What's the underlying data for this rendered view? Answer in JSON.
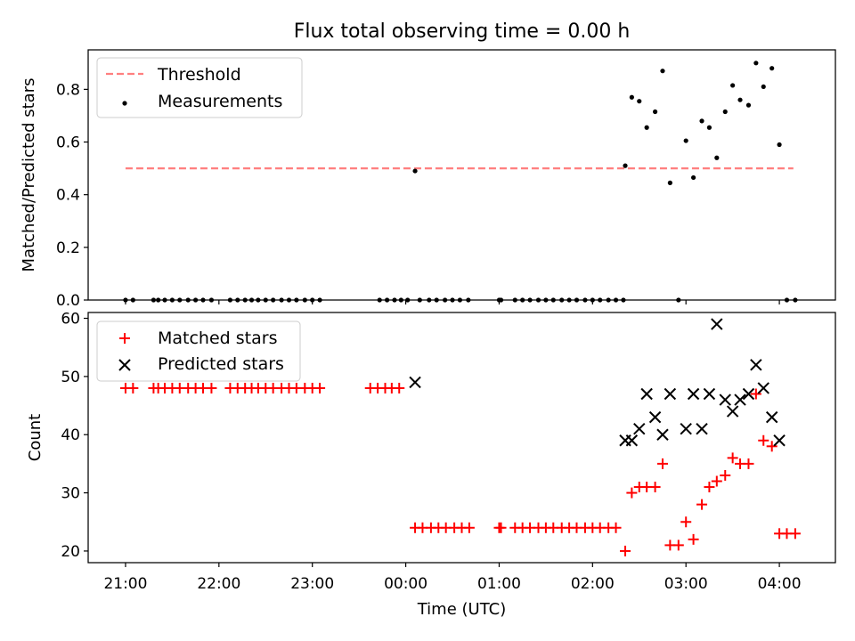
{
  "chart_data": [
    {
      "type": "scatter",
      "title": "Flux total observing time = 0.00 h",
      "xlabel": "",
      "ylabel": "Matched/Predicted stars",
      "ylim": [
        0,
        0.95
      ],
      "yticks": [
        "0.0",
        "0.2",
        "0.4",
        "0.6",
        "0.8"
      ],
      "xrange_hours": [
        20.6,
        28.6
      ],
      "legend_position": "top-left",
      "grid": false,
      "threshold": {
        "name": "Threshold",
        "value": 0.5,
        "x_start": 21.0,
        "x_end": 28.15,
        "color": "#ff7f7f",
        "style": "dashed"
      },
      "series": [
        {
          "name": "Measurements",
          "color": "#000000",
          "marker": "dot",
          "x": [
            21.0,
            21.08,
            21.3,
            21.35,
            21.42,
            21.5,
            21.58,
            21.67,
            21.75,
            21.83,
            21.92,
            22.12,
            22.2,
            22.28,
            22.35,
            22.42,
            22.5,
            22.58,
            22.67,
            22.75,
            22.83,
            22.92,
            23.0,
            23.08,
            23.72,
            23.8,
            23.88,
            23.95,
            24.02,
            24.1,
            24.15,
            24.25,
            24.33,
            24.42,
            24.5,
            24.58,
            24.67,
            25.0,
            25.02,
            25.17,
            25.25,
            25.33,
            25.42,
            25.5,
            25.58,
            25.67,
            25.75,
            25.83,
            25.92,
            26.0,
            26.08,
            26.17,
            26.25,
            26.33,
            26.35,
            26.42,
            26.5,
            26.58,
            26.67,
            26.75,
            26.83,
            26.92,
            27.0,
            27.08,
            27.17,
            27.25,
            27.33,
            27.42,
            27.5,
            27.58,
            27.67,
            27.75,
            27.83,
            27.92,
            28.0,
            28.08,
            28.17
          ],
          "y": [
            0,
            0,
            0,
            0,
            0,
            0,
            0,
            0,
            0,
            0,
            0,
            0,
            0,
            0,
            0,
            0,
            0,
            0,
            0,
            0,
            0,
            0,
            0,
            0,
            0,
            0,
            0,
            0,
            0,
            0.49,
            0,
            0,
            0,
            0,
            0,
            0,
            0,
            0,
            0,
            0,
            0,
            0,
            0,
            0,
            0,
            0,
            0,
            0,
            0,
            0,
            0,
            0,
            0,
            0,
            0.51,
            0.77,
            0.755,
            0.655,
            0.715,
            0.87,
            0.445,
            0.0,
            0.605,
            0.465,
            0.68,
            0.655,
            0.54,
            0.715,
            0.815,
            0.76,
            0.74,
            0.9,
            0.81,
            0.88,
            0.59,
            0,
            0
          ]
        }
      ]
    },
    {
      "type": "scatter",
      "title": "",
      "xlabel": "Time (UTC)",
      "ylabel": "Count",
      "ylim": [
        18,
        61
      ],
      "yticks": [
        "20",
        "30",
        "40",
        "50",
        "60"
      ],
      "xticks": [
        "21:00",
        "22:00",
        "23:00",
        "00:00",
        "01:00",
        "02:00",
        "03:00",
        "04:00"
      ],
      "xtick_hours": [
        21,
        22,
        23,
        24,
        25,
        26,
        27,
        28
      ],
      "xrange_hours": [
        20.6,
        28.6
      ],
      "legend_position": "top-left",
      "grid": false,
      "series": [
        {
          "name": "Matched stars",
          "color": "#ff0000",
          "marker": "plus",
          "x": [
            21.0,
            21.08,
            21.3,
            21.35,
            21.42,
            21.5,
            21.58,
            21.67,
            21.75,
            21.83,
            21.92,
            22.12,
            22.2,
            22.28,
            22.35,
            22.42,
            22.5,
            22.58,
            22.67,
            22.75,
            22.83,
            22.92,
            23.0,
            23.08,
            23.62,
            23.7,
            23.78,
            23.85,
            23.93,
            24.1,
            24.18,
            24.27,
            24.35,
            24.43,
            24.52,
            24.6,
            24.68,
            25.0,
            25.02,
            25.17,
            25.25,
            25.33,
            25.42,
            25.5,
            25.58,
            25.67,
            25.75,
            25.83,
            25.92,
            26.0,
            26.08,
            26.17,
            26.25,
            26.35,
            26.42,
            26.5,
            26.58,
            26.67,
            26.75,
            26.83,
            26.92,
            27.0,
            27.08,
            27.17,
            27.25,
            27.33,
            27.42,
            27.5,
            27.58,
            27.67,
            27.75,
            27.83,
            27.92,
            28.0,
            28.08,
            28.17
          ],
          "y": [
            48,
            48,
            48,
            48,
            48,
            48,
            48,
            48,
            48,
            48,
            48,
            48,
            48,
            48,
            48,
            48,
            48,
            48,
            48,
            48,
            48,
            48,
            48,
            48,
            48,
            48,
            48,
            48,
            48,
            24,
            24,
            24,
            24,
            24,
            24,
            24,
            24,
            24,
            24,
            24,
            24,
            24,
            24,
            24,
            24,
            24,
            24,
            24,
            24,
            24,
            24,
            24,
            24,
            20,
            30,
            31,
            31,
            31,
            35,
            21,
            21,
            25,
            22,
            28,
            31,
            32,
            33,
            36,
            35,
            35,
            47,
            39,
            38,
            23,
            23,
            23
          ]
        },
        {
          "name": "Predicted stars",
          "color": "#000000",
          "marker": "x",
          "x": [
            24.1,
            26.35,
            26.42,
            26.5,
            26.58,
            26.67,
            26.75,
            26.83,
            27.0,
            27.08,
            27.17,
            27.25,
            27.33,
            27.42,
            27.5,
            27.58,
            27.67,
            27.75,
            27.83,
            27.92,
            28.0
          ],
          "y": [
            49,
            39,
            39,
            41,
            47,
            43,
            40,
            47,
            41,
            47,
            41,
            47,
            59,
            46,
            44,
            46,
            47,
            52,
            48,
            43,
            39
          ]
        }
      ]
    }
  ]
}
